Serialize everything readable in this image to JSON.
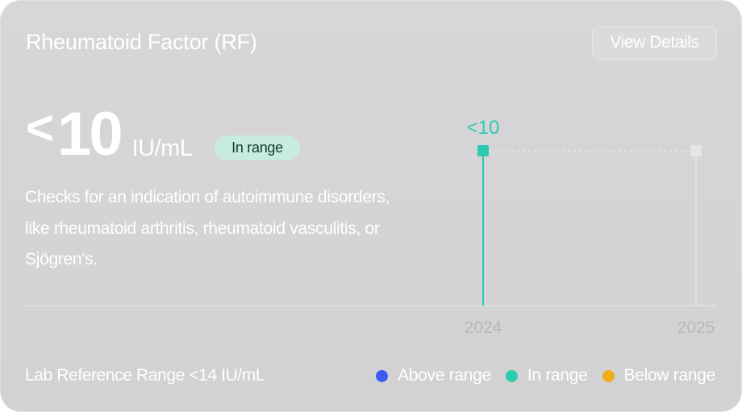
{
  "card": {
    "title": "Rheumatoid Factor (RF)",
    "view_details_label": "View Details",
    "value_prefix": "<",
    "value": "10",
    "unit": "IU/mL",
    "status_badge": "In range",
    "description": "Checks for an indication of autoimmune disorders, like rheumatoid arthritis, rheumatoid vasculitis, or Sjögren's.",
    "reference_range": "Lab Reference Range <14 IU/mL"
  },
  "legend": [
    {
      "label": "Above range",
      "color": "#3a5cf5"
    },
    {
      "label": "In range",
      "color": "#2bcbb0"
    },
    {
      "label": "Below range",
      "color": "#f0ad1a"
    }
  ],
  "chart_data": {
    "type": "line",
    "x": [
      "2024",
      "2025"
    ],
    "series": [
      {
        "values": [
          "<10",
          null
        ],
        "value_labels": [
          "<10",
          ""
        ],
        "color": "#2bcbb0"
      }
    ]
  },
  "colors": {
    "in_range": "#2bcbb0",
    "empty": "#e6e5e8",
    "axis": "#e3e2e5",
    "tick_label": "#b8b7ba"
  }
}
